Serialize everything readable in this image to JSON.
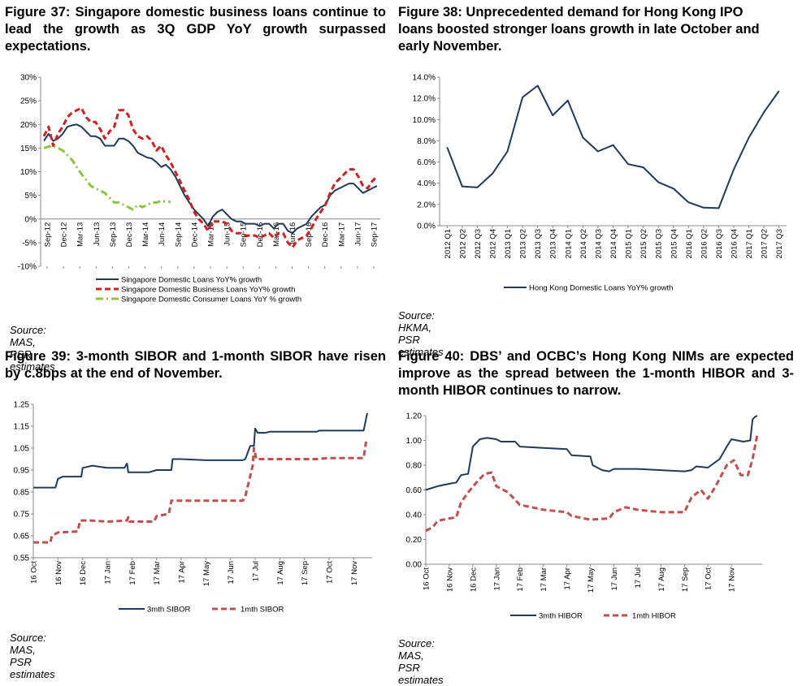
{
  "colors": {
    "navy": "#1f3a5a",
    "red": "#d22020",
    "green": "#8cc63f",
    "darkred": "#c0504d",
    "axis": "#888888",
    "grid": "#cccccc"
  },
  "panels": [
    {
      "title": "Figure 37: Singapore domestic business loans continue to lead the growth as 3Q GDP YoY growth surpassed expectations.",
      "source": "Source: MAS, PSR estimates"
    },
    {
      "title": "Figure 38: Unprecedented demand for Hong Kong IPO loans boosted stronger loans growth in late October and early November.",
      "source": "Source: HKMA, PSR estimates"
    },
    {
      "title": "Figure 39: 3-month SIBOR and 1-month SIBOR have risen by c.8bps at the end of November.",
      "source": "Source: MAS, PSR estimates"
    },
    {
      "title": "Figure 40: DBS’ and OCBC’s Hong Kong NIMs are expected improve as the spread between the 1-month HIBOR and 3-month HIBOR continues to narrow.",
      "source": "Source: MAS, PSR estimates"
    }
  ],
  "chart_data": [
    {
      "type": "line",
      "y_ticks": [
        "30%",
        "25%",
        "20%",
        "15%",
        "10%",
        "5%",
        "0%",
        "-5%",
        "-10%"
      ],
      "ylim": [
        -10,
        30
      ],
      "x_tick_labels": [
        "Sep-12",
        "Dec-12",
        "Mar-13",
        "Jun-13",
        "Sep-13",
        "Dec-13",
        "Mar-14",
        "Jun-14",
        "Sep-14",
        "Dec-14",
        "Mar-15",
        "Jun-15",
        "Sep-15",
        "Dec-15",
        "Mar-16",
        "Jun-16",
        "Sep-16",
        "Dec-16",
        "Mar-17",
        "Jun-17",
        "Sep-17"
      ],
      "legend_position": "bottom",
      "series": [
        {
          "name": "Singapore Domestic Loans YoY% growth",
          "style": "solid",
          "color": "#1f3a5a",
          "values": [
            16.5,
            18,
            16.5,
            17,
            18,
            19.5,
            19.8,
            20,
            19.5,
            18.5,
            17.5,
            17.5,
            17,
            15.5,
            15.5,
            15.5,
            17,
            17,
            16.5,
            15.5,
            14,
            13.5,
            13,
            12.8,
            12,
            11,
            11.5,
            10.5,
            9,
            7,
            5,
            3.5,
            2,
            1,
            0,
            -1.5,
            0.5,
            1.5,
            2,
            1,
            0,
            -0.5,
            -0.5,
            -1,
            -1,
            -1,
            -1.5,
            -1,
            -1,
            -2,
            -1,
            -1,
            -2.5,
            -3,
            -2,
            -1.5,
            -1,
            0.5,
            1.5,
            2.5,
            3,
            5,
            6,
            6.5,
            7,
            7.5,
            7.5,
            6.5,
            5.5,
            6,
            6.5,
            7
          ]
        },
        {
          "name": "Singapore Domestic Business Loans YoY% growth",
          "style": "dashed",
          "color": "#d22020",
          "values": [
            17.5,
            19.5,
            15.5,
            18,
            19.5,
            21.5,
            22.5,
            23,
            23.5,
            21.5,
            20.5,
            20.5,
            19,
            17,
            18.5,
            19.5,
            23,
            23,
            22,
            19,
            17.5,
            17,
            17.5,
            16.5,
            14.5,
            15.5,
            13.5,
            12,
            10,
            8,
            6,
            4,
            1.5,
            0,
            -1,
            -2.5,
            -0.5,
            -0.5,
            -0.5,
            -1,
            -2.5,
            -3,
            -3,
            -3.5,
            -3.5,
            -3.5,
            -4,
            -3.5,
            -3,
            -4,
            -3,
            -3,
            -5,
            -6,
            -4.5,
            -4,
            -3.5,
            -2,
            0,
            1.5,
            3,
            5.5,
            7.5,
            8.5,
            9.5,
            10.5,
            10.5,
            9,
            7,
            6.5,
            8,
            9
          ]
        },
        {
          "name": "Singapore Domestic Consumer Loans YoY % growth",
          "style": "dashdot",
          "color": "#8cc63f",
          "values": [
            15,
            15.3,
            15.5,
            15,
            14.5,
            13.5,
            12.5,
            11,
            9.5,
            8.3,
            7,
            6.5,
            6,
            5.5,
            4.5,
            3.5,
            3.5,
            3,
            2.5,
            2,
            3,
            2.5,
            3,
            3.5,
            3.5,
            3.8,
            3.7,
            3.6
          ]
        }
      ]
    },
    {
      "type": "line",
      "y_ticks": [
        "14.0%",
        "12.0%",
        "10.0%",
        "8.0%",
        "6.0%",
        "4.0%",
        "2.0%",
        "0.0%"
      ],
      "ylim": [
        0,
        14
      ],
      "categories": [
        "2012 Q1",
        "2012 Q2",
        "2012 Q3",
        "2012 Q4",
        "2013 Q1",
        "2013 Q2",
        "2013 Q3",
        "2013 Q4",
        "2014 Q1",
        "2014 Q2",
        "2014 Q3",
        "2014 Q4",
        "2015 Q1",
        "2015 Q2",
        "2015 Q3",
        "2015 Q4",
        "2016 Q1",
        "2016 Q2",
        "2016 Q3",
        "2016 Q4",
        "2017 Q1",
        "2017 Q2",
        "2017 Q3"
      ],
      "legend_position": "bottom",
      "series": [
        {
          "name": "Hong Kong Domestic Loans YoY% growth",
          "style": "solid",
          "color": "#1f3a5a",
          "values": [
            7.4,
            3.7,
            3.6,
            4.9,
            7.0,
            12.1,
            13.2,
            10.4,
            11.8,
            8.3,
            7.0,
            7.6,
            5.8,
            5.5,
            4.1,
            3.5,
            2.2,
            1.7,
            1.65,
            5.3,
            8.3,
            10.7,
            12.7
          ]
        }
      ]
    },
    {
      "type": "line",
      "y_ticks": [
        "1.25",
        "1.15",
        "1.05",
        "0.95",
        "0.85",
        "0.75",
        "0.65",
        "0.55"
      ],
      "ylim": [
        0.55,
        1.25
      ],
      "x_tick_labels": [
        "16 Oct",
        "16 Nov",
        "16 Dec",
        "17 Jan",
        "17 Feb",
        "17 Mar",
        "17 Apr",
        "17 May",
        "17 Jun",
        "17 Jul",
        "17 Aug",
        "17 Sep",
        "17 Oct",
        "17 Nov"
      ],
      "legend_position": "bottom",
      "series": [
        {
          "name": "3mth SIBOR",
          "style": "solid",
          "color": "#1f3a5a",
          "points": [
            [
              0,
              0.87
            ],
            [
              0.9,
              0.87
            ],
            [
              1.0,
              0.91
            ],
            [
              1.2,
              0.92
            ],
            [
              1.95,
              0.92
            ],
            [
              2.0,
              0.96
            ],
            [
              2.4,
              0.97
            ],
            [
              3.0,
              0.96
            ],
            [
              3.7,
              0.96
            ],
            [
              3.8,
              0.98
            ],
            [
              3.85,
              0.94
            ],
            [
              4.7,
              0.94
            ],
            [
              5.0,
              0.95
            ],
            [
              5.6,
              0.95
            ],
            [
              5.65,
              1.0
            ],
            [
              6.0,
              1.0
            ],
            [
              7.0,
              0.995
            ],
            [
              8.5,
              0.995
            ],
            [
              8.6,
              1.0
            ],
            [
              8.8,
              1.06
            ],
            [
              8.95,
              1.06
            ],
            [
              9.0,
              1.14
            ],
            [
              9.1,
              1.12
            ],
            [
              9.4,
              1.12
            ],
            [
              9.6,
              1.125
            ],
            [
              11.5,
              1.125
            ],
            [
              11.6,
              1.13
            ],
            [
              13.4,
              1.13
            ],
            [
              13.55,
              1.21
            ]
          ]
        },
        {
          "name": "1mth SIBOR",
          "style": "dashed",
          "color": "#c0504d",
          "points": [
            [
              0,
              0.62
            ],
            [
              0.7,
              0.62
            ],
            [
              0.75,
              0.65
            ],
            [
              1.0,
              0.665
            ],
            [
              1.8,
              0.67
            ],
            [
              1.9,
              0.72
            ],
            [
              2.3,
              0.72
            ],
            [
              3.0,
              0.715
            ],
            [
              3.8,
              0.72
            ],
            [
              3.85,
              0.735
            ],
            [
              3.9,
              0.715
            ],
            [
              4.9,
              0.715
            ],
            [
              5.0,
              0.74
            ],
            [
              5.5,
              0.75
            ],
            [
              5.6,
              0.81
            ],
            [
              8.5,
              0.81
            ],
            [
              8.6,
              0.83
            ],
            [
              8.9,
              0.97
            ],
            [
              8.95,
              1.05
            ],
            [
              9.05,
              1.0
            ],
            [
              11.0,
              1.0
            ],
            [
              11.5,
              1.0
            ],
            [
              12.0,
              1.005
            ],
            [
              13.4,
              1.005
            ],
            [
              13.5,
              1.08
            ]
          ]
        }
      ]
    },
    {
      "type": "line",
      "y_ticks": [
        "1.20",
        "1.00",
        "0.80",
        "0.60",
        "0.40",
        "0.20",
        "0.00"
      ],
      "ylim": [
        0,
        1.2
      ],
      "x_tick_labels": [
        "16 Oct",
        "16 Nov",
        "16 Dec",
        "17 Jan",
        "17 Feb",
        "17 Mar",
        "17 Apr",
        "17 May",
        "17 Jun",
        "17 Jul",
        "17 Aug",
        "17 Sep",
        "17 Oct",
        "17 Nov"
      ],
      "legend_position": "bottom",
      "series": [
        {
          "name": "3mth HIBOR",
          "style": "solid",
          "color": "#1f3a5a",
          "points": [
            [
              0,
              0.6
            ],
            [
              0.5,
              0.63
            ],
            [
              1.0,
              0.65
            ],
            [
              1.3,
              0.66
            ],
            [
              1.5,
              0.72
            ],
            [
              1.8,
              0.73
            ],
            [
              2.0,
              0.95
            ],
            [
              2.3,
              1.01
            ],
            [
              2.6,
              1.02
            ],
            [
              3.0,
              1.01
            ],
            [
              3.2,
              0.99
            ],
            [
              3.8,
              0.99
            ],
            [
              4.0,
              0.95
            ],
            [
              5.0,
              0.94
            ],
            [
              6.0,
              0.93
            ],
            [
              6.2,
              0.88
            ],
            [
              7.0,
              0.87
            ],
            [
              7.1,
              0.8
            ],
            [
              7.5,
              0.76
            ],
            [
              7.8,
              0.75
            ],
            [
              8.0,
              0.77
            ],
            [
              9.0,
              0.77
            ],
            [
              10.0,
              0.76
            ],
            [
              11.0,
              0.75
            ],
            [
              11.3,
              0.76
            ],
            [
              11.5,
              0.79
            ],
            [
              12.0,
              0.78
            ],
            [
              12.5,
              0.85
            ],
            [
              12.8,
              0.95
            ],
            [
              13.0,
              1.01
            ],
            [
              13.5,
              0.99
            ],
            [
              13.8,
              1.0
            ],
            [
              13.9,
              1.17
            ],
            [
              14.0,
              1.19
            ],
            [
              14.1,
              1.2
            ]
          ]
        },
        {
          "name": "1mth HIBOR",
          "style": "dashed",
          "color": "#c0504d",
          "points": [
            [
              0,
              0.27
            ],
            [
              0.3,
              0.3
            ],
            [
              0.5,
              0.35
            ],
            [
              1.0,
              0.37
            ],
            [
              1.3,
              0.38
            ],
            [
              1.5,
              0.5
            ],
            [
              1.8,
              0.58
            ],
            [
              2.2,
              0.67
            ],
            [
              2.5,
              0.73
            ],
            [
              2.8,
              0.74
            ],
            [
              3.0,
              0.63
            ],
            [
              3.5,
              0.58
            ],
            [
              4.0,
              0.48
            ],
            [
              5.0,
              0.44
            ],
            [
              6.0,
              0.42
            ],
            [
              6.2,
              0.39
            ],
            [
              7.0,
              0.36
            ],
            [
              7.8,
              0.37
            ],
            [
              8.0,
              0.42
            ],
            [
              8.5,
              0.46
            ],
            [
              9.0,
              0.44
            ],
            [
              9.5,
              0.43
            ],
            [
              10.0,
              0.42
            ],
            [
              11.0,
              0.42
            ],
            [
              11.3,
              0.54
            ],
            [
              11.7,
              0.6
            ],
            [
              12.0,
              0.53
            ],
            [
              12.3,
              0.62
            ],
            [
              12.8,
              0.8
            ],
            [
              13.1,
              0.84
            ],
            [
              13.4,
              0.72
            ],
            [
              13.7,
              0.72
            ],
            [
              13.9,
              0.85
            ],
            [
              14.1,
              1.05
            ]
          ]
        }
      ]
    }
  ]
}
